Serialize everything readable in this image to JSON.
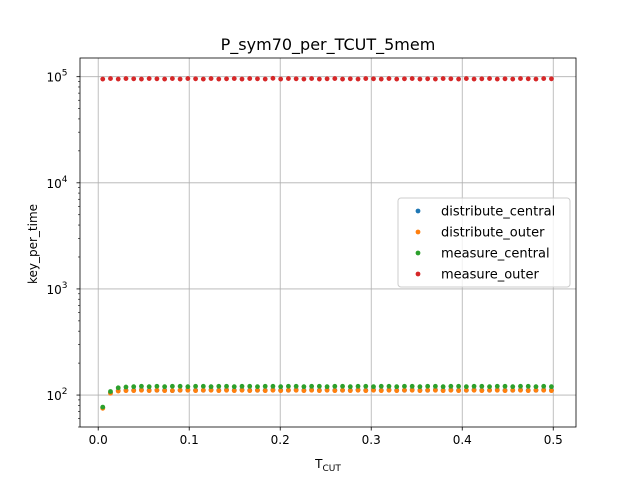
{
  "chart_data": {
    "type": "scatter",
    "title": "P_sym70_per_TCUT_5mem",
    "xlabel": "T",
    "xlabel_sub": "CUT",
    "ylabel": "key_per_time",
    "xlim": [
      -0.02,
      0.525
    ],
    "ylim": [
      50,
      150000
    ],
    "yscale": "log",
    "grid": true,
    "legend_position": "center-right",
    "x_ticks": [
      0.0,
      0.1,
      0.2,
      0.3,
      0.4,
      0.5
    ],
    "x_tick_labels": [
      "0.0",
      "0.1",
      "0.2",
      "0.3",
      "0.4",
      "0.5"
    ],
    "y_ticks": [
      100,
      1000,
      10000,
      100000
    ],
    "y_tick_bases": [
      "10",
      "10",
      "10",
      "10"
    ],
    "y_tick_exponents": [
      "2",
      "3",
      "4",
      "5"
    ],
    "series": [
      {
        "name": "distribute_central",
        "color": "#1f77b4",
        "x": [
          0.005,
          0.0135,
          0.022,
          0.0305,
          0.039,
          0.0475,
          0.056,
          0.0645,
          0.073,
          0.0815,
          0.09,
          0.0985,
          0.107,
          0.1155,
          0.124,
          0.1325,
          0.141,
          0.1495,
          0.158,
          0.1665,
          0.175,
          0.1835,
          0.192,
          0.2005,
          0.209,
          0.2175,
          0.226,
          0.2345,
          0.243,
          0.2515,
          0.26,
          0.2685,
          0.277,
          0.2855,
          0.294,
          0.3025,
          0.311,
          0.3195,
          0.328,
          0.3365,
          0.345,
          0.3535,
          0.362,
          0.3705,
          0.379,
          0.3875,
          0.396,
          0.4045,
          0.413,
          0.4215,
          0.43,
          0.4385,
          0.447,
          0.4555,
          0.464,
          0.4725,
          0.481,
          0.4895,
          0.498
        ],
        "y": [
          76,
          105,
          110,
          111,
          111,
          112,
          111,
          111,
          111,
          110,
          111,
          112,
          111,
          111,
          112,
          111,
          112,
          111,
          112,
          111,
          111,
          111,
          112,
          111,
          111,
          112,
          111,
          112,
          111,
          112,
          111,
          111,
          111,
          112,
          111,
          112,
          111,
          112,
          111,
          111,
          112,
          111,
          111,
          112,
          111,
          112,
          111,
          111,
          112,
          111,
          111,
          112,
          111,
          111,
          112,
          111,
          111,
          112,
          111
        ]
      },
      {
        "name": "distribute_outer",
        "color": "#ff7f0e",
        "x": [
          0.005,
          0.0135,
          0.022,
          0.0305,
          0.039,
          0.0475,
          0.056,
          0.0645,
          0.073,
          0.0815,
          0.09,
          0.0985,
          0.107,
          0.1155,
          0.124,
          0.1325,
          0.141,
          0.1495,
          0.158,
          0.1665,
          0.175,
          0.1835,
          0.192,
          0.2005,
          0.209,
          0.2175,
          0.226,
          0.2345,
          0.243,
          0.2515,
          0.26,
          0.2685,
          0.277,
          0.2855,
          0.294,
          0.3025,
          0.311,
          0.3195,
          0.328,
          0.3365,
          0.345,
          0.3535,
          0.362,
          0.3705,
          0.379,
          0.3875,
          0.396,
          0.4045,
          0.413,
          0.4215,
          0.43,
          0.4385,
          0.447,
          0.4555,
          0.464,
          0.4725,
          0.481,
          0.4895,
          0.498
        ],
        "y": [
          75,
          104,
          109,
          110,
          110,
          111,
          110,
          111,
          110,
          110,
          111,
          111,
          110,
          111,
          111,
          110,
          111,
          110,
          111,
          110,
          111,
          110,
          111,
          110,
          111,
          111,
          110,
          111,
          110,
          111,
          110,
          111,
          110,
          111,
          110,
          111,
          110,
          111,
          110,
          111,
          111,
          110,
          111,
          111,
          110,
          111,
          110,
          111,
          111,
          110,
          111,
          111,
          110,
          111,
          111,
          110,
          111,
          111,
          110
        ]
      },
      {
        "name": "measure_central",
        "color": "#2ca02c",
        "x": [
          0.005,
          0.0135,
          0.022,
          0.0305,
          0.039,
          0.0475,
          0.056,
          0.0645,
          0.073,
          0.0815,
          0.09,
          0.0985,
          0.107,
          0.1155,
          0.124,
          0.1325,
          0.141,
          0.1495,
          0.158,
          0.1665,
          0.175,
          0.1835,
          0.192,
          0.2005,
          0.209,
          0.2175,
          0.226,
          0.2345,
          0.243,
          0.2515,
          0.26,
          0.2685,
          0.277,
          0.2855,
          0.294,
          0.3025,
          0.311,
          0.3195,
          0.328,
          0.3365,
          0.345,
          0.3535,
          0.362,
          0.3705,
          0.379,
          0.3875,
          0.396,
          0.4045,
          0.413,
          0.4215,
          0.43,
          0.4385,
          0.447,
          0.4555,
          0.464,
          0.4725,
          0.481,
          0.4895,
          0.498
        ],
        "y": [
          77,
          108,
          117,
          119,
          120,
          121,
          120,
          121,
          120,
          121,
          121,
          120,
          121,
          121,
          120,
          121,
          121,
          120,
          121,
          121,
          120,
          121,
          121,
          120,
          121,
          121,
          120,
          121,
          121,
          120,
          121,
          121,
          120,
          121,
          121,
          120,
          121,
          121,
          120,
          121,
          121,
          120,
          121,
          121,
          120,
          121,
          121,
          120,
          121,
          121,
          120,
          121,
          121,
          120,
          121,
          121,
          120,
          121,
          120
        ]
      },
      {
        "name": "measure_outer",
        "color": "#d62728",
        "x": [
          0.005,
          0.0135,
          0.022,
          0.0305,
          0.039,
          0.0475,
          0.056,
          0.0645,
          0.073,
          0.0815,
          0.09,
          0.0985,
          0.107,
          0.1155,
          0.124,
          0.1325,
          0.141,
          0.1495,
          0.158,
          0.1665,
          0.175,
          0.1835,
          0.192,
          0.2005,
          0.209,
          0.2175,
          0.226,
          0.2345,
          0.243,
          0.2515,
          0.26,
          0.2685,
          0.277,
          0.2855,
          0.294,
          0.3025,
          0.311,
          0.3195,
          0.328,
          0.3365,
          0.345,
          0.3535,
          0.362,
          0.3705,
          0.379,
          0.3875,
          0.396,
          0.4045,
          0.413,
          0.4215,
          0.43,
          0.4385,
          0.447,
          0.4555,
          0.464,
          0.4725,
          0.481,
          0.4895,
          0.498
        ],
        "y": [
          95000,
          96000,
          95000,
          96000,
          95500,
          95000,
          96000,
          95500,
          95000,
          96000,
          95000,
          96000,
          95500,
          95000,
          96000,
          95000,
          95500,
          96000,
          95000,
          96000,
          95500,
          95000,
          96500,
          95000,
          96000,
          95500,
          95000,
          96000,
          95000,
          95500,
          96000,
          95000,
          95500,
          95000,
          96000,
          95500,
          95000,
          96000,
          95000,
          95500,
          96000,
          95000,
          95500,
          95000,
          96000,
          95500,
          95000,
          96000,
          95000,
          95500,
          96000,
          95000,
          95500,
          95000,
          96000,
          95500,
          95000,
          96000,
          95500
        ]
      }
    ]
  }
}
